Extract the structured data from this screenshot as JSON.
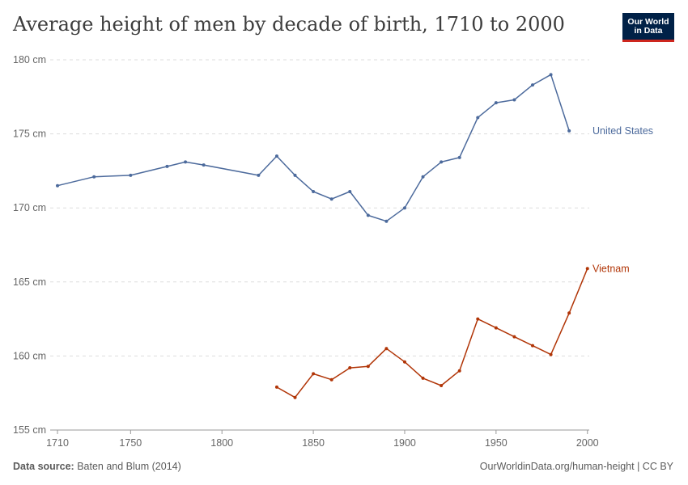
{
  "title": "Average height of men by decade of birth, 1710 to 2000",
  "logo": {
    "line1": "Our World",
    "line2": "in Data"
  },
  "footer": {
    "source_label": "Data source:",
    "source_value": "Baten and Blum (2014)",
    "url_license": "OurWorldinData.org/human-height | CC BY"
  },
  "colors": {
    "united_states": "#4c6a9c",
    "vietnam": "#b13507",
    "grid": "#dddddd",
    "axis": "#999999"
  },
  "chart_data": {
    "type": "line",
    "title": "Average height of men by decade of birth, 1710 to 2000",
    "xlabel": "",
    "ylabel": "",
    "xlim": [
      1706,
      2001
    ],
    "ylim": [
      155,
      180
    ],
    "grid": "horizontal dashed",
    "x_ticks": [
      1710,
      1750,
      1800,
      1850,
      1900,
      1950,
      2000
    ],
    "x_tick_labels": [
      "1710",
      "1750",
      "1800",
      "1850",
      "1900",
      "1950",
      "2000"
    ],
    "y_ticks": [
      155,
      160,
      165,
      170,
      175,
      180
    ],
    "y_tick_labels": [
      "155 cm",
      "160 cm",
      "165 cm",
      "170 cm",
      "175 cm",
      "180 cm"
    ],
    "series": [
      {
        "name": "United States",
        "x": [
          1710,
          1730,
          1750,
          1770,
          1780,
          1790,
          1820,
          1830,
          1840,
          1850,
          1860,
          1870,
          1880,
          1890,
          1900,
          1910,
          1920,
          1930,
          1940,
          1950,
          1960,
          1970,
          1980,
          1990
        ],
        "values": [
          171.5,
          172.1,
          172.2,
          172.8,
          173.1,
          172.9,
          172.2,
          173.5,
          172.2,
          171.1,
          170.6,
          171.1,
          169.5,
          169.1,
          170.0,
          172.1,
          173.1,
          173.4,
          176.1,
          177.1,
          177.3,
          178.3,
          179.0,
          175.2
        ]
      },
      {
        "name": "Vietnam",
        "x": [
          1830,
          1840,
          1850,
          1860,
          1870,
          1880,
          1890,
          1900,
          1910,
          1920,
          1930,
          1940,
          1950,
          1960,
          1970,
          1980,
          1990,
          2000
        ],
        "values": [
          157.9,
          157.2,
          158.8,
          158.4,
          159.2,
          159.3,
          160.5,
          159.6,
          158.5,
          158.0,
          159.0,
          162.5,
          161.9,
          161.3,
          160.7,
          160.1,
          162.9,
          165.9
        ]
      }
    ]
  }
}
